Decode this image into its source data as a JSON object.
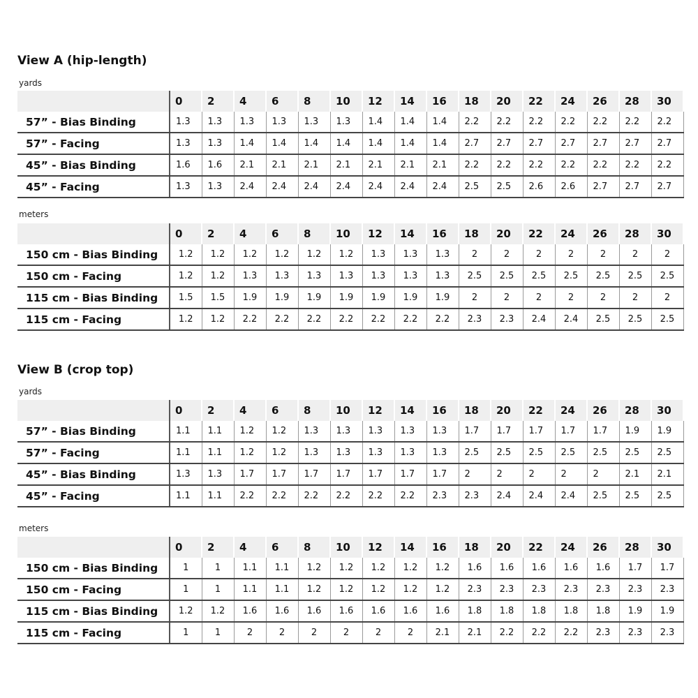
{
  "sizes": [
    "0",
    "2",
    "4",
    "6",
    "8",
    "10",
    "12",
    "14",
    "16",
    "18",
    "20",
    "22",
    "24",
    "26",
    "28",
    "30"
  ],
  "views": [
    {
      "title": "View A (hip-length)",
      "tables": [
        {
          "unit": "yards",
          "rows": [
            {
              "label": "57” - Bias Binding",
              "values": [
                "1.3",
                "1.3",
                "1.3",
                "1.3",
                "1.3",
                "1.3",
                "1.4",
                "1.4",
                "1.4",
                "2.2",
                "2.2",
                "2.2",
                "2.2",
                "2.2",
                "2.2",
                "2.2"
              ]
            },
            {
              "label": "57” - Facing",
              "values": [
                "1.3",
                "1.3",
                "1.4",
                "1.4",
                "1.4",
                "1.4",
                "1.4",
                "1.4",
                "1.4",
                "2.7",
                "2.7",
                "2.7",
                "2.7",
                "2.7",
                "2.7",
                "2.7"
              ]
            },
            {
              "label": "45” - Bias Binding",
              "values": [
                "1.6",
                "1.6",
                "2.1",
                "2.1",
                "2.1",
                "2.1",
                "2.1",
                "2.1",
                "2.1",
                "2.2",
                "2.2",
                "2.2",
                "2.2",
                "2.2",
                "2.2",
                "2.2"
              ]
            },
            {
              "label": "45” - Facing",
              "values": [
                "1.3",
                "1.3",
                "2.4",
                "2.4",
                "2.4",
                "2.4",
                "2.4",
                "2.4",
                "2.4",
                "2.5",
                "2.5",
                "2.6",
                "2.6",
                "2.7",
                "2.7",
                "2.7"
              ]
            }
          ]
        },
        {
          "unit": "meters",
          "rows": [
            {
              "label": "150 cm - Bias Binding",
              "values": [
                "1.2",
                "1.2",
                "1.2",
                "1.2",
                "1.2",
                "1.2",
                "1.3",
                "1.3",
                "1.3",
                "2",
                "2",
                "2",
                "2",
                "2",
                "2",
                "2"
              ]
            },
            {
              "label": "150 cm - Facing",
              "values": [
                "1.2",
                "1.2",
                "1.3",
                "1.3",
                "1.3",
                "1.3",
                "1.3",
                "1.3",
                "1.3",
                "2.5",
                "2.5",
                "2.5",
                "2.5",
                "2.5",
                "2.5",
                "2.5"
              ]
            },
            {
              "label": "115 cm - Bias Binding",
              "values": [
                "1.5",
                "1.5",
                "1.9",
                "1.9",
                "1.9",
                "1.9",
                "1.9",
                "1.9",
                "1.9",
                "2",
                "2",
                "2",
                "2",
                "2",
                "2",
                "2"
              ]
            },
            {
              "label": "115 cm - Facing",
              "values": [
                "1.2",
                "1.2",
                "2.2",
                "2.2",
                "2.2",
                "2.2",
                "2.2",
                "2.2",
                "2.2",
                "2.3",
                "2.3",
                "2.4",
                "2.4",
                "2.5",
                "2.5",
                "2.5"
              ]
            }
          ]
        }
      ]
    },
    {
      "title": "View B (crop top)",
      "tables": [
        {
          "unit": "yards",
          "rows": [
            {
              "label": "57” - Bias Binding",
              "values": [
                "1.1",
                "1.1",
                "1.2",
                "1.2",
                "1.3",
                "1.3",
                "1.3",
                "1.3",
                "1.3",
                "1.7",
                "1.7",
                "1.7",
                "1.7",
                "1.7",
                "1.9",
                "1.9"
              ]
            },
            {
              "label": "57” - Facing",
              "values": [
                "1.1",
                "1.1",
                "1.2",
                "1.2",
                "1.3",
                "1.3",
                "1.3",
                "1.3",
                "1.3",
                "2.5",
                "2.5",
                "2.5",
                "2.5",
                "2.5",
                "2.5",
                "2.5"
              ]
            },
            {
              "label": "45” - Bias Binding",
              "values": [
                "1.3",
                "1.3",
                "1.7",
                "1.7",
                "1.7",
                "1.7",
                "1.7",
                "1.7",
                "1.7",
                "2",
                "2",
                "2",
                "2",
                "2",
                "2.1",
                "2.1"
              ]
            },
            {
              "label": "45” - Facing",
              "values": [
                "1.1",
                "1.1",
                "2.2",
                "2.2",
                "2.2",
                "2.2",
                "2.2",
                "2.2",
                "2.3",
                "2.3",
                "2.4",
                "2.4",
                "2.4",
                "2.5",
                "2.5",
                "2.5"
              ]
            }
          ]
        },
        {
          "unit": "meters",
          "rows": [
            {
              "label": "150 cm - Bias Binding",
              "values": [
                "1",
                "1",
                "1.1",
                "1.1",
                "1.2",
                "1.2",
                "1.2",
                "1.2",
                "1.2",
                "1.6",
                "1.6",
                "1.6",
                "1.6",
                "1.6",
                "1.7",
                "1.7"
              ]
            },
            {
              "label": "150 cm - Facing",
              "values": [
                "1",
                "1",
                "1.1",
                "1.1",
                "1.2",
                "1.2",
                "1.2",
                "1.2",
                "1.2",
                "2.3",
                "2.3",
                "2.3",
                "2.3",
                "2.3",
                "2.3",
                "2.3"
              ]
            },
            {
              "label": "115 cm - Bias Binding",
              "values": [
                "1.2",
                "1.2",
                "1.6",
                "1.6",
                "1.6",
                "1.6",
                "1.6",
                "1.6",
                "1.6",
                "1.8",
                "1.8",
                "1.8",
                "1.8",
                "1.8",
                "1.9",
                "1.9"
              ]
            },
            {
              "label": "115 cm - Facing",
              "values": [
                "1",
                "1",
                "2",
                "2",
                "2",
                "2",
                "2",
                "2",
                "2.1",
                "2.1",
                "2.2",
                "2.2",
                "2.2",
                "2.3",
                "2.3",
                "2.3"
              ]
            }
          ]
        }
      ]
    }
  ]
}
